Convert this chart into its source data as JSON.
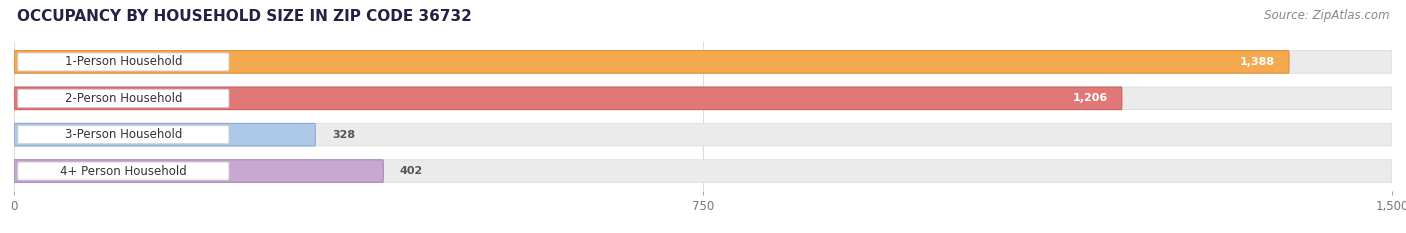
{
  "title": "OCCUPANCY BY HOUSEHOLD SIZE IN ZIP CODE 36732",
  "source": "Source: ZipAtlas.com",
  "categories": [
    "1-Person Household",
    "2-Person Household",
    "3-Person Household",
    "4+ Person Household"
  ],
  "values": [
    1388,
    1206,
    328,
    402
  ],
  "bar_colors": [
    "#f5a94e",
    "#e07878",
    "#adc8e8",
    "#c8a8d0"
  ],
  "bar_edge_colors": [
    "#e09040",
    "#cc6060",
    "#88aad0",
    "#a888b8"
  ],
  "xlim": [
    0,
    1500
  ],
  "xticks": [
    0,
    750,
    1500
  ],
  "bar_height": 0.62,
  "background_color": "#ffffff",
  "bar_bg_color": "#ebebeb",
  "bar_bg_edge_color": "#d8d8d8",
  "title_fontsize": 11,
  "source_fontsize": 8.5,
  "label_fontsize": 8.5,
  "value_fontsize": 8,
  "tick_fontsize": 8.5,
  "title_color": "#222244",
  "source_color": "#888888",
  "value_inside_color": "#ffffff",
  "value_outside_color": "#555555",
  "label_box_color": "#ffffff",
  "label_text_color": "#333333",
  "grid_color": "#dddddd",
  "rounding": 10
}
